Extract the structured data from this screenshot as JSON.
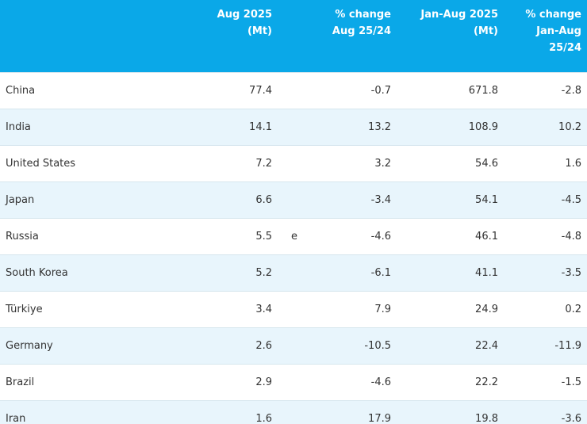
{
  "table": {
    "header": [
      [
        "Aug 2025",
        "(Mt)"
      ],
      [
        "% change",
        "Aug 25/24"
      ],
      [
        "Jan-Aug 2025",
        "(Mt)"
      ],
      [
        "% change",
        "Jan-Aug",
        "25/24"
      ]
    ],
    "rows": [
      {
        "country": "China",
        "aug_2025": 77.4,
        "change_aug": -0.7,
        "jan_aug_2025": 671.8,
        "change_jan_aug": -2.8
      },
      {
        "country": "India",
        "aug_2025": 14.1,
        "change_aug": 13.2,
        "jan_aug_2025": 108.9,
        "change_jan_aug": 10.2
      },
      {
        "country": "United States",
        "aug_2025": 7.2,
        "change_aug": 3.2,
        "jan_aug_2025": 54.6,
        "change_jan_aug": 1.6
      },
      {
        "country": "Japan",
        "aug_2025": 6.6,
        "change_aug": -3.4,
        "jan_aug_2025": 54.1,
        "change_jan_aug": -4.5
      },
      {
        "country": "Russia",
        "aug_2025": 5.5,
        "note": "e",
        "change_aug": -4.6,
        "jan_aug_2025": 46.1,
        "change_jan_aug": -4.8
      },
      {
        "country": "South Korea",
        "aug_2025": 5.2,
        "change_aug": -6.1,
        "jan_aug_2025": 41.1,
        "change_jan_aug": -3.5
      },
      {
        "country": "Türkiye",
        "aug_2025": 3.4,
        "change_aug": 7.9,
        "jan_aug_2025": 24.9,
        "change_jan_aug": 0.2
      },
      {
        "country": "Germany",
        "aug_2025": 2.6,
        "change_aug": -10.5,
        "jan_aug_2025": 22.4,
        "change_jan_aug": -11.9
      },
      {
        "country": "Brazil",
        "aug_2025": 2.9,
        "change_aug": -4.6,
        "jan_aug_2025": 22.2,
        "change_jan_aug": -1.5
      },
      {
        "country": "Iran",
        "aug_2025": 1.6,
        "change_aug": 17.9,
        "jan_aug_2025": 19.8,
        "change_jan_aug": -3.6
      }
    ]
  }
}
